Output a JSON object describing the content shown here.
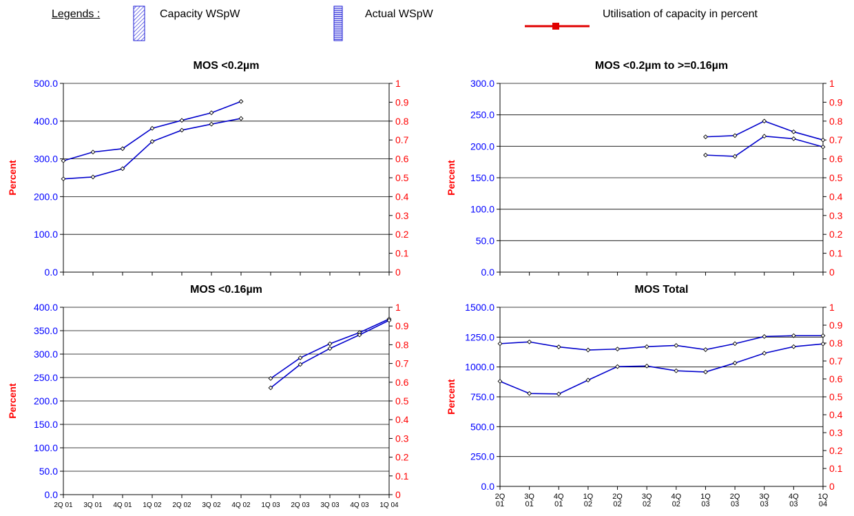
{
  "legend": {
    "title": "Legends :",
    "capacity_label": "Capacity  WSpW",
    "actual_label": "Actual  WSpW",
    "utilisation_label": "Utilisation of capacity in percent",
    "colors": {
      "bar_pattern": "#1a1ad6",
      "utilisation": "#e00000"
    }
  },
  "colors": {
    "left_axis": "#0000ff",
    "right_axis": "#ff0000",
    "series": "#0000cc",
    "percent_label": "#ff0000",
    "grid": "#000000"
  },
  "chart_data": [
    {
      "type": "line",
      "title": "MOS <0.2µm",
      "ylabel": "Percent",
      "ylim": [
        0,
        500
      ],
      "yticks": [
        "0.0",
        "100.0",
        "200.0",
        "300.0",
        "400.0",
        "500.0"
      ],
      "y2lim": [
        0,
        1
      ],
      "y2ticks": [
        "0",
        "0.1",
        "0.2",
        "0.3",
        "0.4",
        "0.5",
        "0.6",
        "0.7",
        "0.8",
        "0.9",
        "1"
      ],
      "categories": [
        "2Q 01",
        "3Q 01",
        "4Q 01",
        "1Q 02",
        "2Q 02",
        "3Q 02",
        "4Q 02",
        "1Q 03",
        "2Q 03",
        "3Q 03",
        "4Q 03",
        "1Q 04"
      ],
      "show_xlabels": false,
      "series": [
        {
          "values": [
            295,
            318,
            327,
            381,
            402,
            422,
            452,
            null,
            null,
            null,
            null,
            null
          ]
        },
        {
          "values": [
            247,
            252,
            274,
            346,
            376,
            392,
            407,
            null,
            null,
            null,
            null,
            null
          ]
        }
      ]
    },
    {
      "type": "line",
      "title": "MOS <0.2µm to >=0.16µm",
      "ylabel": "Percent",
      "ylim": [
        0,
        300
      ],
      "yticks": [
        "0.0",
        "50.0",
        "100.0",
        "150.0",
        "200.0",
        "250.0",
        "300.0"
      ],
      "y2lim": [
        0,
        1
      ],
      "y2ticks": [
        "0",
        "0.1",
        "0.2",
        "0.3",
        "0.4",
        "0.5",
        "0.6",
        "0.7",
        "0.8",
        "0.9",
        "1"
      ],
      "categories": [
        "2Q 01",
        "3Q 01",
        "4Q 01",
        "1Q 02",
        "2Q 02",
        "3Q 02",
        "4Q 02",
        "1Q 03",
        "2Q 03",
        "3Q 03",
        "4Q 03",
        "1Q 04"
      ],
      "show_xlabels": false,
      "series": [
        {
          "values": [
            null,
            null,
            null,
            null,
            null,
            null,
            null,
            215,
            217,
            240,
            223,
            210
          ]
        },
        {
          "values": [
            null,
            null,
            null,
            null,
            null,
            null,
            null,
            186,
            184,
            216,
            212,
            199
          ]
        }
      ]
    },
    {
      "type": "line",
      "title": "MOS <0.16µm",
      "ylabel": "Percent",
      "ylim": [
        0,
        400
      ],
      "yticks": [
        "0.0",
        "50.0",
        "100.0",
        "150.0",
        "200.0",
        "250.0",
        "300.0",
        "350.0",
        "400.0"
      ],
      "y2lim": [
        0,
        1
      ],
      "y2ticks": [
        "0",
        "0.1",
        "0.2",
        "0.3",
        "0.4",
        "0.5",
        "0.6",
        "0.7",
        "0.8",
        "0.9",
        "1"
      ],
      "categories": [
        "2Q 01",
        "3Q 01",
        "4Q 01",
        "1Q 02",
        "2Q 02",
        "3Q 02",
        "4Q 02",
        "1Q 03",
        "2Q 03",
        "3Q 03",
        "4Q 03",
        "1Q 04"
      ],
      "show_xlabels": true,
      "series": [
        {
          "values": [
            null,
            null,
            null,
            null,
            null,
            null,
            null,
            248,
            292,
            322,
            346,
            375
          ]
        },
        {
          "values": [
            null,
            null,
            null,
            null,
            null,
            null,
            null,
            228,
            278,
            312,
            341,
            372
          ]
        }
      ]
    },
    {
      "type": "line",
      "title": "MOS Total",
      "ylabel": "Percent",
      "ylim": [
        0,
        1500
      ],
      "yticks": [
        "0.0",
        "250.0",
        "500.0",
        "750.0",
        "1000.0",
        "1250.0",
        "1500.0"
      ],
      "y2lim": [
        0,
        1
      ],
      "y2ticks": [
        "0",
        "0.1",
        "0.2",
        "0.3",
        "0.4",
        "0.5",
        "0.6",
        "0.7",
        "0.8",
        "0.9",
        "1"
      ],
      "categories": [
        "2Q 01",
        "3Q 01",
        "4Q 01",
        "1Q 02",
        "2Q 02",
        "3Q 02",
        "4Q 02",
        "1Q 03",
        "2Q 03",
        "3Q 03",
        "4Q 03",
        "1Q 04"
      ],
      "show_xlabels": true,
      "xlabel_wrap": true,
      "series": [
        {
          "values": [
            1195,
            1210,
            1168,
            1142,
            1150,
            1170,
            1180,
            1145,
            1195,
            1255,
            1262,
            1262
          ]
        },
        {
          "values": [
            880,
            778,
            774,
            890,
            1003,
            1008,
            968,
            958,
            1033,
            1115,
            1170,
            1193
          ]
        }
      ]
    }
  ]
}
